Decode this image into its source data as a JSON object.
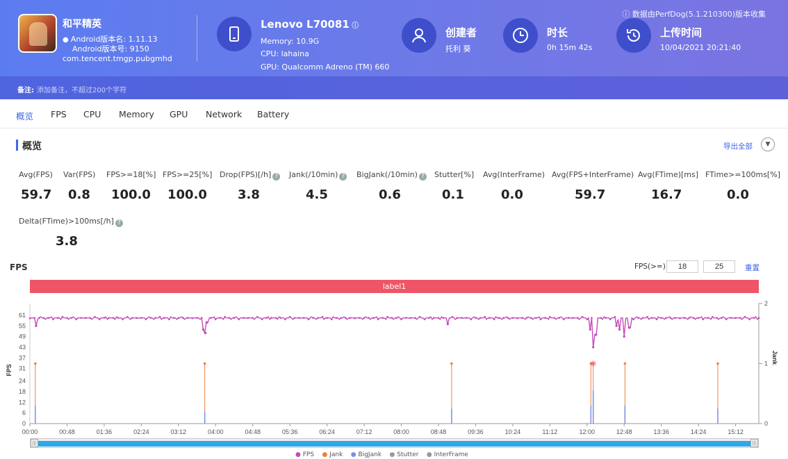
{
  "header": {
    "data_source": "数据由PerfDog(5.1.210300)版本收集",
    "app": {
      "name": "和平精英",
      "version": "Android版本名: 1.11.13",
      "build": "Android版本号: 9150",
      "package": "com.tencent.tmgp.pubgmhd"
    },
    "device": {
      "name": "Lenovo L70081",
      "memory": "Memory: 10.9G",
      "cpu": "CPU: lahaina",
      "gpu": "GPU: Qualcomm Adreno (TM) 660"
    },
    "creator": {
      "label": "创建者",
      "value": "托利 葵"
    },
    "duration": {
      "label": "时长",
      "value": "0h 15m 42s"
    },
    "upload": {
      "label": "上传时间",
      "value": "10/04/2021 20:21:40"
    },
    "note_label": "备注:",
    "note_placeholder": "添加备注，不超过200个字符"
  },
  "tabs": [
    "概览",
    "FPS",
    "CPU",
    "Memory",
    "GPU",
    "Network",
    "Battery"
  ],
  "overview": {
    "title": "概览",
    "export": "导出全部",
    "metrics": [
      {
        "label": "Avg(FPS)",
        "value": "59.7"
      },
      {
        "label": "Var(FPS)",
        "value": "0.8"
      },
      {
        "label": "FPS>=18[%]",
        "value": "100.0"
      },
      {
        "label": "FPS>=25[%]",
        "value": "100.0"
      },
      {
        "label": "Drop(FPS)[/h]",
        "value": "3.8"
      },
      {
        "label": "Jank(/10min)",
        "value": "4.5"
      },
      {
        "label": "BigJank(/10min)",
        "value": "0.6"
      },
      {
        "label": "Stutter[%]",
        "value": "0.1"
      },
      {
        "label": "Avg(InterFrame)",
        "value": "0.0"
      },
      {
        "label": "Avg(FPS+InterFrame)",
        "value": "59.7"
      },
      {
        "label": "Avg(FTime)[ms]",
        "value": "16.7"
      },
      {
        "label": "FTime>=100ms[%]",
        "value": "0.0"
      },
      {
        "label": "Delta(FTime)>100ms[/h]",
        "value": "3.8"
      }
    ]
  },
  "fps_panel": {
    "title": "FPS",
    "threshold_label": "FPS(>=)",
    "threshold1": "18",
    "threshold2": "25",
    "reset": "重置",
    "band_label": "label1"
  },
  "colors": {
    "header": "#6c7ae8",
    "accent": "#3f67e8",
    "fps": "#c44bb8",
    "jank": "#f07f3c",
    "bigjank": "#7b8ee6",
    "band": "#ee5566",
    "scroll": "#2fa7e8"
  },
  "chart_data": {
    "type": "line",
    "xlabel": "",
    "ylabel": "FPS",
    "y2label": "Jank",
    "x_ticks": [
      "00:00",
      "00:48",
      "01:36",
      "02:24",
      "03:12",
      "04:00",
      "04:48",
      "05:36",
      "06:24",
      "07:12",
      "08:00",
      "08:48",
      "09:36",
      "10:24",
      "11:12",
      "12:00",
      "12:48",
      "13:36",
      "14:24",
      "15:12"
    ],
    "y_ticks": [
      0,
      6,
      12,
      18,
      24,
      31,
      37,
      43,
      49,
      55,
      61
    ],
    "y2_ticks": [
      0,
      1,
      2
    ],
    "ylim": [
      0,
      61
    ],
    "y2lim": [
      0,
      2
    ],
    "xlim_seconds": [
      0,
      942
    ],
    "series": [
      {
        "name": "FPS",
        "baseline": 59.5,
        "dips": [
          [
            8,
            55
          ],
          [
            224,
            53
          ],
          [
            227,
            51
          ],
          [
            229,
            57
          ],
          [
            540,
            56
          ],
          [
            724,
            53
          ],
          [
            728,
            43
          ],
          [
            731,
            50
          ],
          [
            758,
            55
          ],
          [
            762,
            53
          ],
          [
            768,
            49
          ],
          [
            775,
            54
          ]
        ]
      },
      {
        "name": "Jank",
        "events": [
          [
            7,
            1
          ],
          [
            226,
            1
          ],
          [
            545,
            1
          ],
          [
            725,
            1
          ],
          [
            728,
            1
          ],
          [
            769,
            1
          ],
          [
            889,
            1
          ]
        ]
      },
      {
        "name": "BigJank",
        "events": [
          [
            7,
            0.3
          ],
          [
            226,
            0.2
          ],
          [
            545,
            0.25
          ],
          [
            725,
            0.3
          ],
          [
            728,
            0.55
          ],
          [
            769,
            0.3
          ],
          [
            889,
            0.25
          ]
        ]
      },
      {
        "name": "Stutter",
        "events": []
      },
      {
        "name": "InterFrame",
        "events": []
      }
    ],
    "legend": [
      "FPS",
      "Jank",
      "BigJank",
      "Stutter",
      "InterFrame"
    ]
  }
}
